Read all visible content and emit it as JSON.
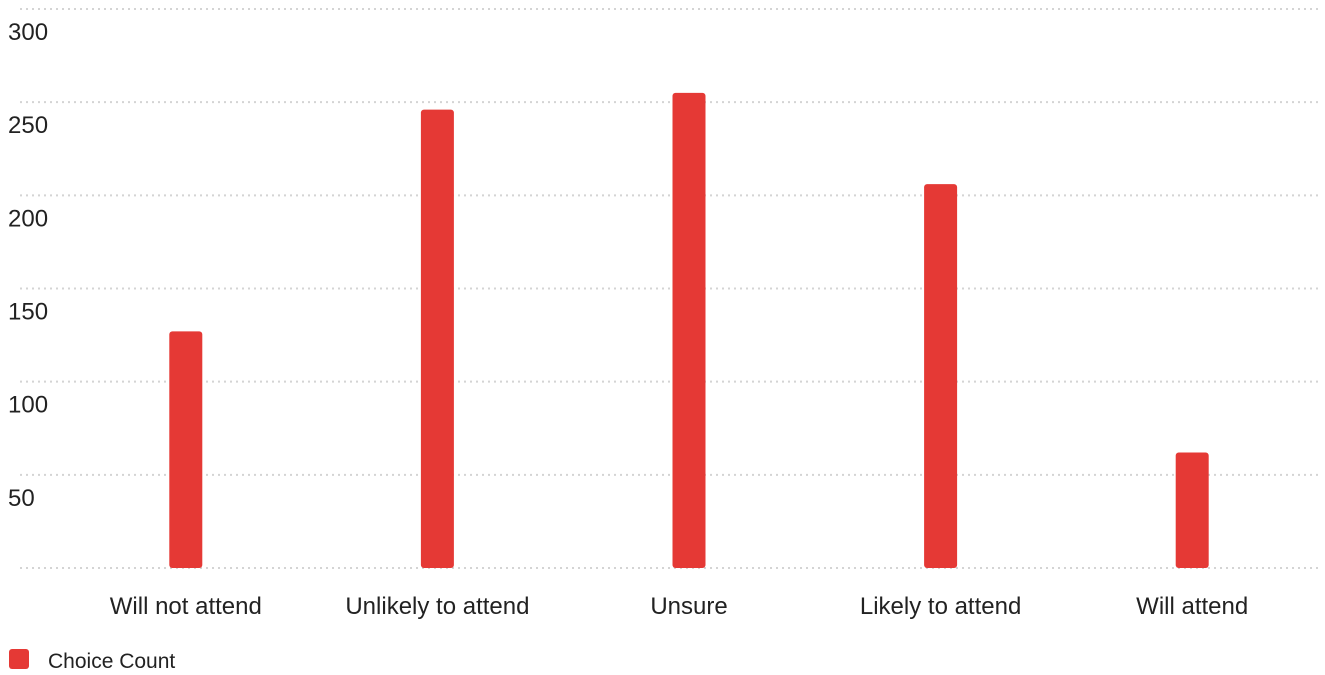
{
  "chart_data": {
    "type": "bar",
    "categories": [
      "Will not attend",
      "Unlikely to attend",
      "Unsure",
      "Likely to attend",
      "Will attend"
    ],
    "series": [
      {
        "name": "Choice Count",
        "values": [
          127,
          246,
          255,
          206,
          62
        ],
        "color": "#e53935"
      }
    ],
    "y_ticks": [
      50,
      100,
      150,
      200,
      250,
      300
    ],
    "ylim": [
      0,
      300
    ],
    "grid": true,
    "legend_position": "bottom-left",
    "title": "",
    "xlabel": "",
    "ylabel": ""
  }
}
